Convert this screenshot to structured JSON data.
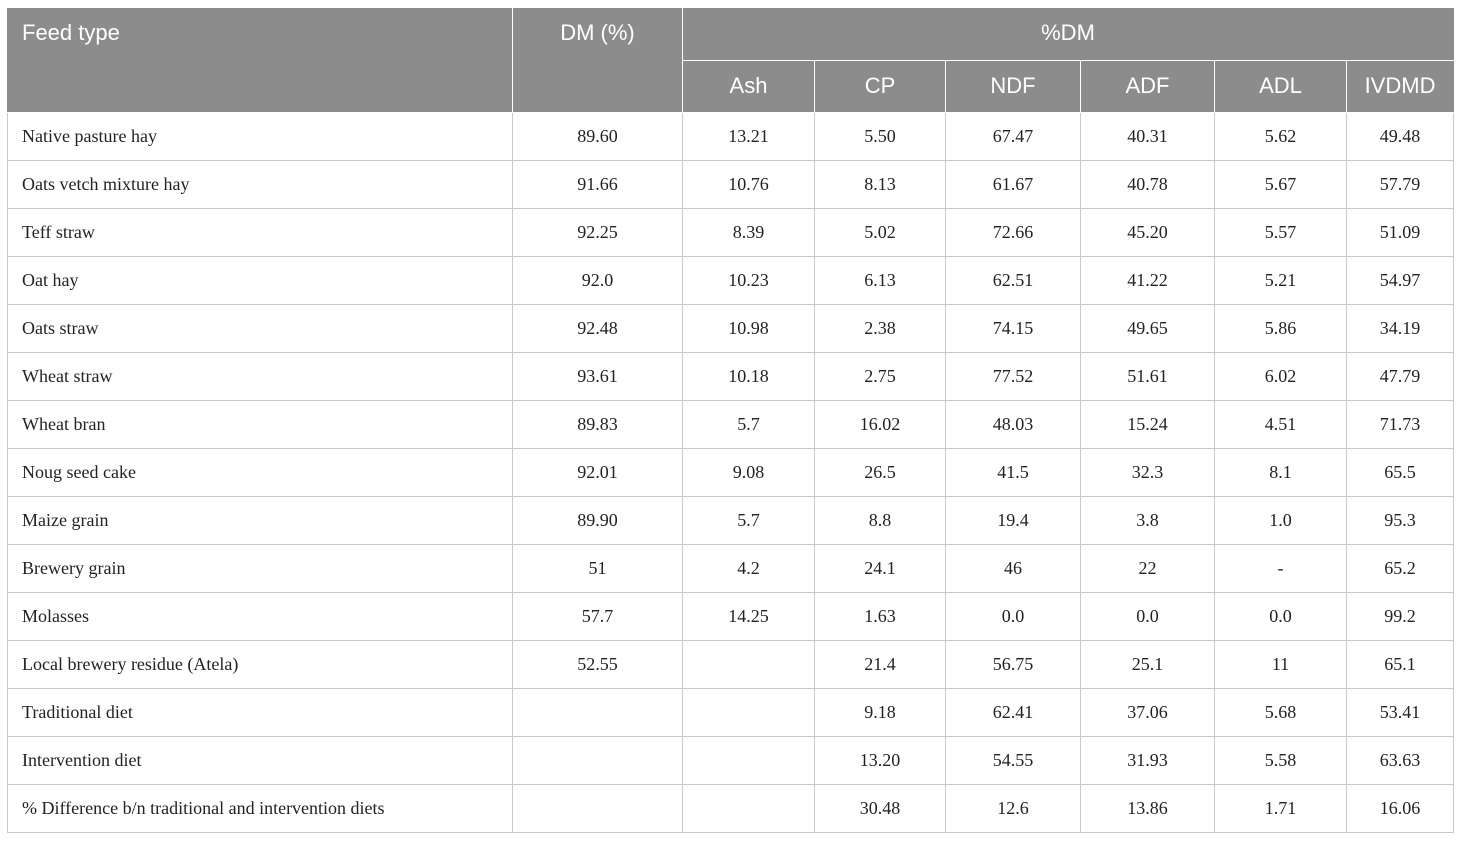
{
  "table": {
    "header": {
      "feed_type": "Feed type",
      "dm_percent": "DM (%)",
      "group_label": "%DM",
      "sub_columns": [
        "Ash",
        "CP",
        "NDF",
        "ADF",
        "ADL",
        "IVDMD"
      ]
    },
    "rows": [
      {
        "feed": "Native pasture hay",
        "dm": "89.60",
        "ash": "13.21",
        "cp": "5.50",
        "ndf": "67.47",
        "adf": "40.31",
        "adl": "5.62",
        "ivdmd": "49.48"
      },
      {
        "feed": "Oats vetch mixture hay",
        "dm": "91.66",
        "ash": "10.76",
        "cp": "8.13",
        "ndf": "61.67",
        "adf": "40.78",
        "adl": "5.67",
        "ivdmd": "57.79"
      },
      {
        "feed": "Teff straw",
        "dm": "92.25",
        "ash": "8.39",
        "cp": "5.02",
        "ndf": "72.66",
        "adf": "45.20",
        "adl": "5.57",
        "ivdmd": "51.09"
      },
      {
        "feed": "Oat hay",
        "dm": "92.0",
        "ash": "10.23",
        "cp": "6.13",
        "ndf": "62.51",
        "adf": "41.22",
        "adl": "5.21",
        "ivdmd": "54.97"
      },
      {
        "feed": "Oats straw",
        "dm": "92.48",
        "ash": "10.98",
        "cp": "2.38",
        "ndf": "74.15",
        "adf": "49.65",
        "adl": "5.86",
        "ivdmd": "34.19"
      },
      {
        "feed": "Wheat straw",
        "dm": "93.61",
        "ash": "10.18",
        "cp": "2.75",
        "ndf": "77.52",
        "adf": "51.61",
        "adl": "6.02",
        "ivdmd": "47.79"
      },
      {
        "feed": "Wheat bran",
        "dm": "89.83",
        "ash": "5.7",
        "cp": "16.02",
        "ndf": "48.03",
        "adf": "15.24",
        "adl": "4.51",
        "ivdmd": "71.73"
      },
      {
        "feed": "Noug seed cake",
        "dm": "92.01",
        "ash": "9.08",
        "cp": "26.5",
        "ndf": "41.5",
        "adf": "32.3",
        "adl": "8.1",
        "ivdmd": "65.5"
      },
      {
        "feed": "Maize grain",
        "dm": "89.90",
        "ash": "5.7",
        "cp": "8.8",
        "ndf": "19.4",
        "adf": "3.8",
        "adl": "1.0",
        "ivdmd": "95.3"
      },
      {
        "feed": "Brewery grain",
        "dm": "51",
        "ash": "4.2",
        "cp": "24.1",
        "ndf": "46",
        "adf": "22",
        "adl": "-",
        "ivdmd": "65.2"
      },
      {
        "feed": "Molasses",
        "dm": "57.7",
        "ash": "14.25",
        "cp": "1.63",
        "ndf": "0.0",
        "adf": "0.0",
        "adl": "0.0",
        "ivdmd": "99.2"
      },
      {
        "feed": "Local brewery residue (Atela)",
        "dm": "52.55",
        "ash": "",
        "cp": "21.4",
        "ndf": "56.75",
        "adf": "25.1",
        "adl": "11",
        "ivdmd": "65.1"
      },
      {
        "feed": "Traditional diet",
        "dm": "",
        "ash": "",
        "cp": "9.18",
        "ndf": "62.41",
        "adf": "37.06",
        "adl": "5.68",
        "ivdmd": "53.41"
      },
      {
        "feed": "Intervention diet",
        "dm": "",
        "ash": "",
        "cp": "13.20",
        "ndf": "54.55",
        "adf": "31.93",
        "adl": "5.58",
        "ivdmd": "63.63"
      },
      {
        "feed": "% Difference b/n traditional and intervention diets",
        "dm": "",
        "ash": "",
        "cp": "30.48",
        "ndf": "12.6",
        "adf": "13.86",
        "adl": "1.71",
        "ivdmd": "16.06"
      }
    ]
  }
}
